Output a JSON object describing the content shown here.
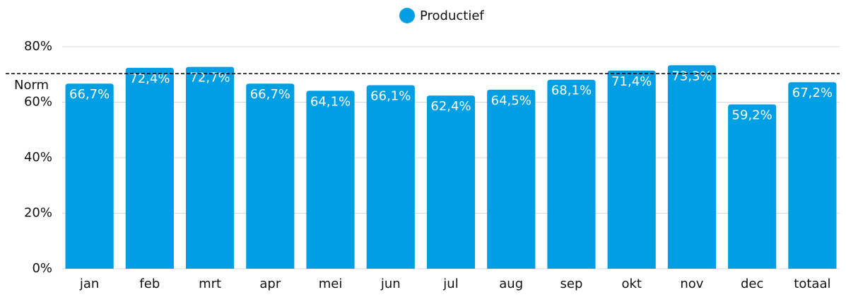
{
  "chart_data": {
    "type": "bar",
    "categories": [
      "jan",
      "feb",
      "mrt",
      "apr",
      "mei",
      "jun",
      "jul",
      "aug",
      "sep",
      "okt",
      "nov",
      "dec",
      "totaal"
    ],
    "series": [
      {
        "name": "Productief",
        "color": "#009fe3",
        "values": [
          66.7,
          72.4,
          72.7,
          66.7,
          64.1,
          66.1,
          62.4,
          64.5,
          68.1,
          71.4,
          73.3,
          59.2,
          67.2
        ],
        "value_labels": [
          "66,7%",
          "72,4%",
          "72,7%",
          "66,7%",
          "64,1%",
          "66,1%",
          "62,4%",
          "64,5%",
          "68,1%",
          "71,4%",
          "73,3%",
          "59,2%",
          "67,2%"
        ]
      }
    ],
    "ylim": [
      0,
      80
    ],
    "yticks": [
      {
        "value": 0,
        "label": "0%"
      },
      {
        "value": 20,
        "label": "20%"
      },
      {
        "value": 40,
        "label": "40%"
      },
      {
        "value": 60,
        "label": "60%"
      },
      {
        "value": 80,
        "label": "80%"
      }
    ],
    "grid": true,
    "legend": "top",
    "annotations": [
      {
        "label": "Norm",
        "value": 70.3
      }
    ]
  }
}
